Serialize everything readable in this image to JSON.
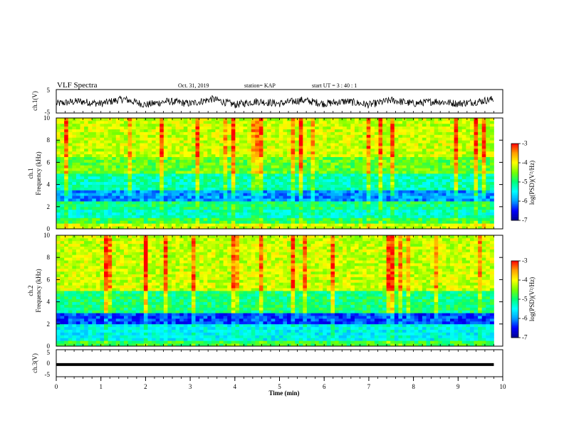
{
  "header": {
    "title": "VLF Spectra",
    "date": "Oct. 31, 2019",
    "station": "station= KAP",
    "start": "start  UT =   3 : 40 : 1"
  },
  "colorbar_label": "log(PSD)(V²/Hz)",
  "colors": {
    "colormap": [
      "#00008f",
      "#0000ff",
      "#00b0ff",
      "#00ffff",
      "#00ff66",
      "#66ff00",
      "#ffff00",
      "#ff9900",
      "#ff0000",
      "#ffffff"
    ]
  },
  "chart_data": [
    {
      "type": "line",
      "ylabel": "ch.1(V)",
      "xlabel": "",
      "xlim": [
        0,
        10
      ],
      "ylim": [
        -5,
        5
      ],
      "yticks": [
        "5",
        "-5"
      ],
      "series": [
        {
          "x": [
            0,
            0.5,
            1,
            1.5,
            2,
            2.5,
            3,
            3.5,
            4,
            4.5,
            5,
            5.5,
            6,
            6.5,
            7,
            7.5,
            8,
            8.5,
            9,
            9.5,
            9.8
          ],
          "values": [
            -1,
            0,
            -1,
            1,
            -1.5,
            0,
            -1,
            1,
            -1.5,
            0,
            -1,
            0.5,
            -1,
            0,
            -1.5,
            0.5,
            -1,
            0,
            -1,
            0,
            1
          ]
        }
      ]
    },
    {
      "type": "heatmap",
      "ylabel": "Frequency (kHz)",
      "channel_label": "ch.1",
      "xlim": [
        0,
        10
      ],
      "ylim": [
        0,
        10
      ],
      "yticks": [
        "0",
        "2",
        "4",
        "6",
        "8",
        "10"
      ],
      "colorbar": {
        "range": [
          -7,
          -3
        ],
        "ticks": [
          "-3",
          "-4",
          "-5",
          "-6",
          "-7"
        ]
      },
      "level_profile": [
        {
          "freq": [
            0,
            0.5
          ],
          "level": -4.2
        },
        {
          "freq": [
            0.5,
            1.0
          ],
          "level": -4.8
        },
        {
          "freq": [
            1.0,
            1.7
          ],
          "level": -5.3
        },
        {
          "freq": [
            1.7,
            2.4
          ],
          "level": -5.0
        },
        {
          "freq": [
            2.4,
            3.4
          ],
          "level": -6.0
        },
        {
          "freq": [
            3.4,
            5.0
          ],
          "level": -5.2
        },
        {
          "freq": [
            5.0,
            6.5
          ],
          "level": -4.6
        },
        {
          "freq": [
            6.5,
            10
          ],
          "level": -4.2
        }
      ]
    },
    {
      "type": "heatmap",
      "ylabel": "Frequency (kHz)",
      "channel_label": "ch.2",
      "xlim": [
        0,
        10
      ],
      "ylim": [
        0,
        10
      ],
      "yticks": [
        "0",
        "2",
        "4",
        "6",
        "8",
        "10"
      ],
      "colorbar": {
        "range": [
          -7,
          -3
        ],
        "ticks": [
          "-3",
          "-4",
          "-5",
          "-6",
          "-7"
        ]
      },
      "level_profile": [
        {
          "freq": [
            0,
            0.5
          ],
          "level": -4.8
        },
        {
          "freq": [
            0.5,
            2.0
          ],
          "level": -5.5
        },
        {
          "freq": [
            2.0,
            3.1
          ],
          "level": -6.3
        },
        {
          "freq": [
            3.1,
            5.0
          ],
          "level": -5.0
        },
        {
          "freq": [
            5.0,
            10
          ],
          "level": -4.2
        }
      ]
    },
    {
      "type": "line",
      "ylabel": "ch.3(V)",
      "xlabel": "Time (min)",
      "xlim": [
        0,
        10
      ],
      "ylim": [
        -5,
        5
      ],
      "yticks": [
        "5",
        "0",
        "-5"
      ],
      "xticks": [
        "0",
        "1",
        "2",
        "3",
        "4",
        "5",
        "6",
        "7",
        "8",
        "9",
        "10"
      ],
      "series": [
        {
          "x": [
            0,
            9.8
          ],
          "values": [
            -0.5,
            -0.5
          ]
        }
      ]
    }
  ]
}
